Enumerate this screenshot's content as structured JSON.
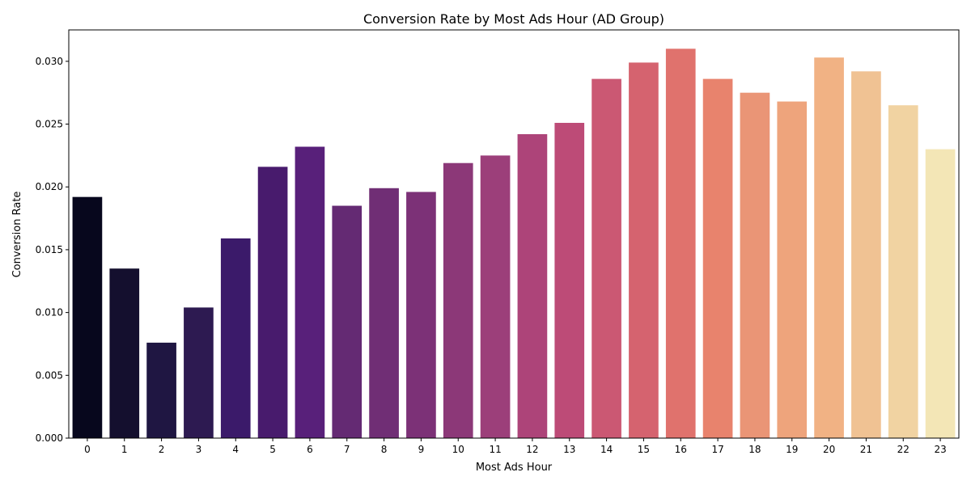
{
  "chart_data": {
    "type": "bar",
    "title": "Conversion Rate by Most Ads Hour (AD Group)",
    "xlabel": "Most Ads Hour",
    "ylabel": "Conversion Rate",
    "ylim": [
      0,
      0.0325
    ],
    "yticks": [
      "0.000",
      "0.005",
      "0.010",
      "0.015",
      "0.020",
      "0.025",
      "0.030"
    ],
    "categories": [
      "0",
      "1",
      "2",
      "3",
      "4",
      "5",
      "6",
      "7",
      "8",
      "9",
      "10",
      "11",
      "12",
      "13",
      "14",
      "15",
      "16",
      "17",
      "18",
      "19",
      "20",
      "21",
      "22",
      "23"
    ],
    "values": [
      0.0192,
      0.0135,
      0.0076,
      0.0104,
      0.0159,
      0.0216,
      0.0232,
      0.0185,
      0.0199,
      0.0196,
      0.0219,
      0.0225,
      0.0242,
      0.0251,
      0.0286,
      0.0299,
      0.031,
      0.0286,
      0.0275,
      0.0268,
      0.0303,
      0.0292,
      0.0265,
      0.023
    ],
    "colors": [
      "#07071d",
      "#140f2e",
      "#1f1642",
      "#2d1a51",
      "#3b1a6a",
      "#481b6d",
      "#58207a",
      "#642a73",
      "#702e75",
      "#7c3177",
      "#8c3878",
      "#9c3f7a",
      "#ad4479",
      "#bd4b77",
      "#cb5873",
      "#d5636f",
      "#e0726d",
      "#e8836d",
      "#ea9576",
      "#eea47c",
      "#f1b284",
      "#f0c293",
      "#f1d3a2",
      "#f3e6b6"
    ],
    "grid": false
  }
}
